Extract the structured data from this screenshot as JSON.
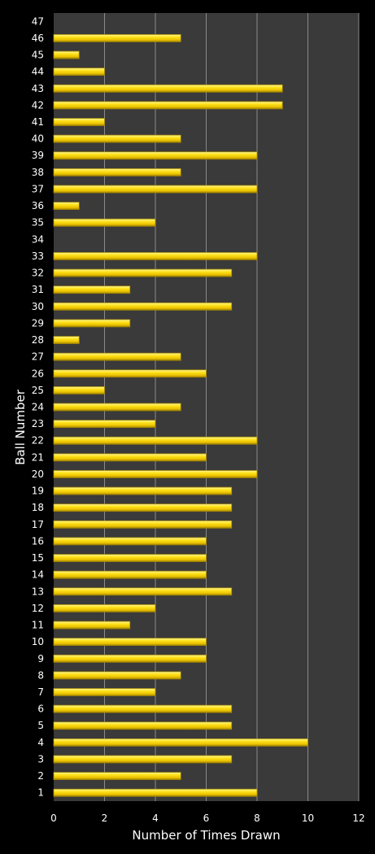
{
  "chart_data": {
    "type": "bar",
    "orientation": "horizontal",
    "title": "",
    "xlabel": "Number of Times Drawn",
    "ylabel": "Ball Number",
    "xlim": [
      0,
      12
    ],
    "xticks": [
      "0",
      "2",
      "4",
      "6",
      "8",
      "10",
      "12"
    ],
    "grid": "vertical gridlines",
    "legend": "none",
    "categories": [
      "1",
      "2",
      "3",
      "4",
      "5",
      "6",
      "7",
      "8",
      "9",
      "10",
      "11",
      "12",
      "13",
      "14",
      "15",
      "16",
      "17",
      "18",
      "19",
      "20",
      "21",
      "22",
      "23",
      "24",
      "25",
      "26",
      "27",
      "28",
      "29",
      "30",
      "31",
      "32",
      "33",
      "34",
      "35",
      "36",
      "37",
      "38",
      "39",
      "40",
      "41",
      "42",
      "43",
      "44",
      "45",
      "46",
      "47"
    ],
    "values": [
      8,
      5,
      7,
      10,
      7,
      7,
      4,
      5,
      6,
      6,
      3,
      4,
      7,
      6,
      6,
      6,
      7,
      7,
      7,
      8,
      6,
      8,
      4,
      5,
      2,
      6,
      5,
      1,
      3,
      7,
      3,
      7,
      8,
      0,
      4,
      1,
      8,
      5,
      8,
      5,
      2,
      9,
      9,
      2,
      1,
      5,
      0
    ],
    "colors": {
      "background": "#000000",
      "plot_area": "#3a3a3a",
      "bar_fill": "#f5d000",
      "bar_highlight": "#fff27a",
      "bar_shadow": "#a88a00",
      "gridline": "#8a8a8a",
      "text": "#ffffff"
    }
  }
}
